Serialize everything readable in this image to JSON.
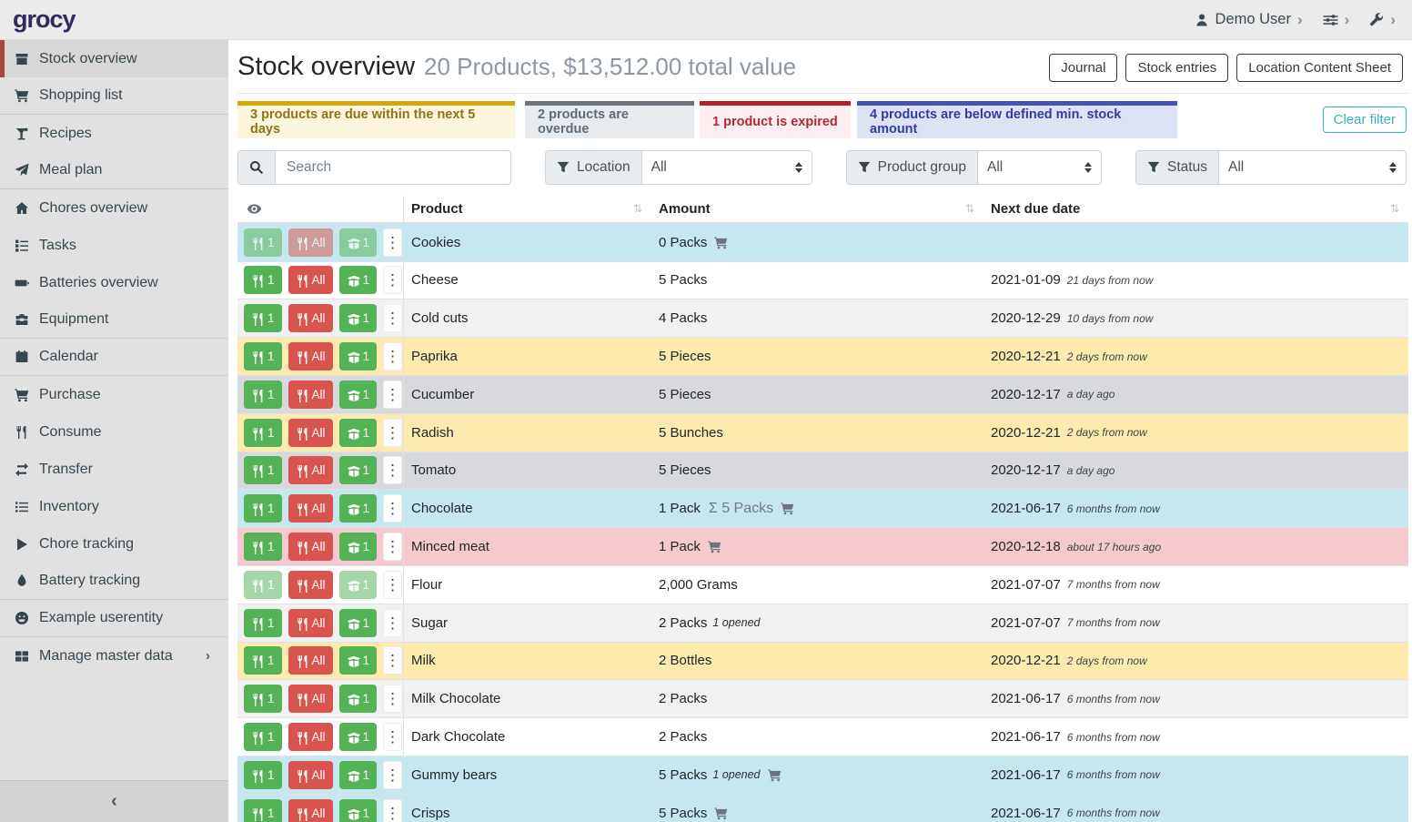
{
  "topbar": {
    "brand": "grocy",
    "user": "Demo User"
  },
  "sidebar": {
    "collapse_label": "‹",
    "items": [
      {
        "label": "Stock overview",
        "icon": "box",
        "active": true
      },
      {
        "label": "Shopping list",
        "icon": "cart",
        "divider_after": true
      },
      {
        "label": "Recipes",
        "icon": "cocktail"
      },
      {
        "label": "Meal plan",
        "icon": "plane",
        "divider_after": true
      },
      {
        "label": "Chores overview",
        "icon": "home"
      },
      {
        "label": "Tasks",
        "icon": "tasks"
      },
      {
        "label": "Batteries overview",
        "icon": "battery"
      },
      {
        "label": "Equipment",
        "icon": "toolbox",
        "divider_after": true
      },
      {
        "label": "Calendar",
        "icon": "calendar",
        "divider_after": true
      },
      {
        "label": "Purchase",
        "icon": "cart"
      },
      {
        "label": "Consume",
        "icon": "utensils"
      },
      {
        "label": "Transfer",
        "icon": "exchange"
      },
      {
        "label": "Inventory",
        "icon": "list"
      },
      {
        "label": "Chore tracking",
        "icon": "play"
      },
      {
        "label": "Battery tracking",
        "icon": "flame",
        "divider_after": true
      },
      {
        "label": "Example userentity",
        "icon": "smiley",
        "divider_after": true
      },
      {
        "label": "Manage master data",
        "icon": "table",
        "chevron": true
      }
    ]
  },
  "header": {
    "title": "Stock overview",
    "subtitle": "20 Products, $13,512.00 total value",
    "buttons": [
      "Journal",
      "Stock entries",
      "Location Content Sheet"
    ]
  },
  "alerts": [
    {
      "text": "3 products are due within the next 5 days"
    },
    {
      "text": "2 products are overdue"
    },
    {
      "text": "1 product is expired"
    },
    {
      "text": "4 products are below defined min. stock amount"
    }
  ],
  "clear_filter_label": "Clear filter",
  "filters": {
    "search_placeholder": "Search",
    "selects": [
      {
        "label": "Location",
        "value": "All"
      },
      {
        "label": "Product group",
        "value": "All"
      },
      {
        "label": "Status",
        "value": "All"
      }
    ]
  },
  "table": {
    "headers": {
      "product": "Product",
      "amount": "Amount",
      "due": "Next due date"
    },
    "sort_glyph": "⇅",
    "row_buttons": {
      "consume_one": "1",
      "consume_all": "All",
      "open_one": "1"
    },
    "rows": [
      {
        "product": "Cookies",
        "amount": "0 Packs",
        "cart": true,
        "due": "",
        "note": "",
        "state": "info",
        "disabled": [
          "c1",
          "call",
          "o1"
        ]
      },
      {
        "product": "Cheese",
        "amount": "5 Packs",
        "cart": false,
        "due": "2021-01-09",
        "note": "21 days from now",
        "state": "",
        "disabled": []
      },
      {
        "product": "Cold cuts",
        "amount": "4 Packs",
        "cart": false,
        "due": "2020-12-29",
        "note": "10 days from now",
        "state": "stripe",
        "disabled": []
      },
      {
        "product": "Paprika",
        "amount": "5 Pieces",
        "cart": false,
        "due": "2020-12-21",
        "note": "2 days from now",
        "state": "warning",
        "disabled": []
      },
      {
        "product": "Cucumber",
        "amount": "5 Pieces",
        "cart": false,
        "due": "2020-12-17",
        "note": "a day ago",
        "state": "secondary",
        "disabled": []
      },
      {
        "product": "Radish",
        "amount": "5 Bunches",
        "cart": false,
        "due": "2020-12-21",
        "note": "2 days from now",
        "state": "warning",
        "disabled": []
      },
      {
        "product": "Tomato",
        "amount": "5 Pieces",
        "cart": false,
        "due": "2020-12-17",
        "note": "a day ago",
        "state": "secondary",
        "disabled": []
      },
      {
        "product": "Chocolate",
        "amount": "1 Pack",
        "aggregate": "Σ 5 Packs",
        "cart": true,
        "due": "2021-06-17",
        "note": "6 months from now",
        "state": "info",
        "disabled": []
      },
      {
        "product": "Minced meat",
        "amount": "1 Pack",
        "cart": true,
        "due": "2020-12-18",
        "note": "about 17 hours ago",
        "state": "danger",
        "disabled": []
      },
      {
        "product": "Flour",
        "amount": "2,000 Grams",
        "cart": false,
        "due": "2021-07-07",
        "note": "7 months from now",
        "state": "",
        "disabled": [
          "c1",
          "o1"
        ]
      },
      {
        "product": "Sugar",
        "amount": "2 Packs",
        "opened": "1 opened",
        "cart": false,
        "due": "2021-07-07",
        "note": "7 months from now",
        "state": "stripe",
        "disabled": []
      },
      {
        "product": "Milk",
        "amount": "2 Bottles",
        "cart": false,
        "due": "2020-12-21",
        "note": "2 days from now",
        "state": "warning",
        "disabled": []
      },
      {
        "product": "Milk Chocolate",
        "amount": "2 Packs",
        "cart": false,
        "due": "2021-06-17",
        "note": "6 months from now",
        "state": "stripe",
        "disabled": []
      },
      {
        "product": "Dark Chocolate",
        "amount": "2 Packs",
        "cart": false,
        "due": "2021-06-17",
        "note": "6 months from now",
        "state": "",
        "disabled": []
      },
      {
        "product": "Gummy bears",
        "amount": "5 Packs",
        "opened": "1 opened",
        "cart": true,
        "due": "2021-06-17",
        "note": "6 months from now",
        "state": "info",
        "disabled": []
      },
      {
        "product": "Crisps",
        "amount": "5 Packs",
        "cart": true,
        "due": "2021-06-17",
        "note": "6 months from now",
        "state": "info",
        "disabled": []
      }
    ]
  },
  "colors": {
    "brand": "#312a5e",
    "accent_red": "#a94442",
    "teal": "#39b0c6",
    "button_green": "#54b257",
    "button_red": "#d9534f",
    "alert_due_soon_accent": "#d3a60c",
    "alert_overdue_accent": "#6c757d",
    "alert_expired_accent": "#b21f2d",
    "alert_below_min_accent": "#4353af",
    "row_info": "#c5e8f0",
    "row_warning": "#fceaae",
    "row_secondary": "#d7d9dc",
    "row_danger": "#f6c9ce"
  }
}
